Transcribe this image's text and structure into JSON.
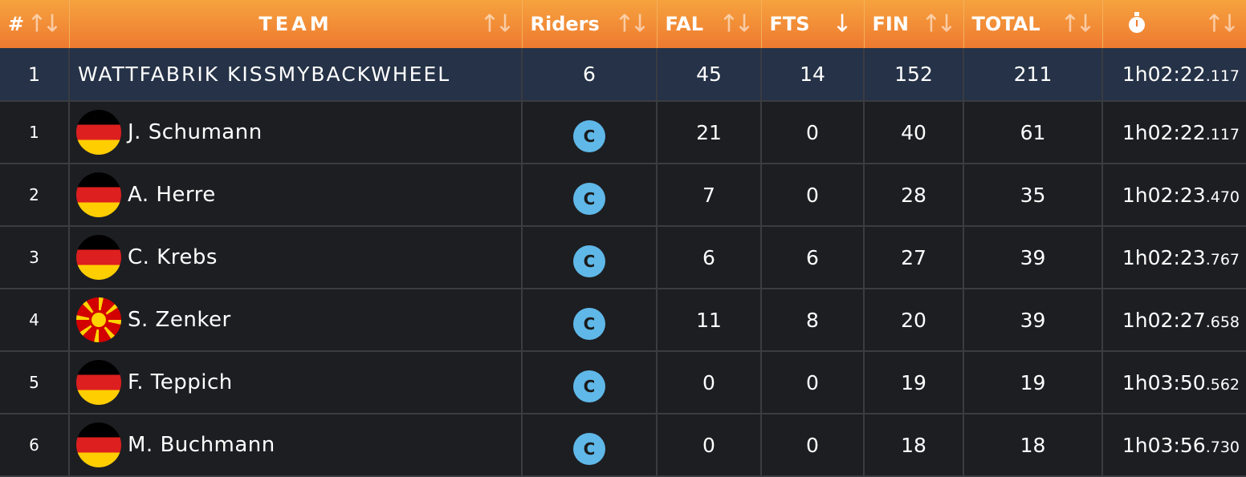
{
  "header": {
    "rank": "#",
    "team": "TEAM",
    "riders": "Riders",
    "fal": "FAL",
    "fts": "FTS",
    "fin": "FIN",
    "total": "TOTAL",
    "time_icon": "stopwatch-icon",
    "sort_icon": "sort-arrows-icon",
    "active_sort": "fts"
  },
  "team": {
    "rank": "1",
    "name": "WATTFABRIK KISSMYBACKWHEEL",
    "riders": "6",
    "fal": "45",
    "fts": "14",
    "fin": "152",
    "total": "211",
    "time_main": "1h02:22",
    "time_ms": ".117"
  },
  "riders": [
    {
      "rank": "1",
      "flag": "germany-flag",
      "name": "J. Schumann",
      "category": "C",
      "fal": "21",
      "fts": "0",
      "fin": "40",
      "total": "61",
      "time_main": "1h02:22",
      "time_ms": ".117"
    },
    {
      "rank": "2",
      "flag": "germany-flag",
      "name": "A. Herre",
      "category": "C",
      "fal": "7",
      "fts": "0",
      "fin": "28",
      "total": "35",
      "time_main": "1h02:23",
      "time_ms": ".470"
    },
    {
      "rank": "3",
      "flag": "germany-flag",
      "name": "C. Krebs",
      "category": "C",
      "fal": "6",
      "fts": "6",
      "fin": "27",
      "total": "39",
      "time_main": "1h02:23",
      "time_ms": ".767"
    },
    {
      "rank": "4",
      "flag": "north-macedonia-flag",
      "name": "S. Zenker",
      "category": "C",
      "fal": "11",
      "fts": "8",
      "fin": "20",
      "total": "39",
      "time_main": "1h02:27",
      "time_ms": ".658"
    },
    {
      "rank": "5",
      "flag": "germany-flag",
      "name": "F. Teppich",
      "category": "C",
      "fal": "0",
      "fts": "0",
      "fin": "19",
      "total": "19",
      "time_main": "1h03:50",
      "time_ms": ".562"
    },
    {
      "rank": "6",
      "flag": "germany-flag",
      "name": "M. Buchmann",
      "category": "C",
      "fal": "0",
      "fts": "0",
      "fin": "18",
      "total": "18",
      "time_main": "1h03:56",
      "time_ms": ".730"
    }
  ],
  "colors": {
    "header_orange": "#ee7a30",
    "team_row_bg": "#253247",
    "row_bg": "#1d1e22",
    "category_badge": "#5fb8e8"
  }
}
